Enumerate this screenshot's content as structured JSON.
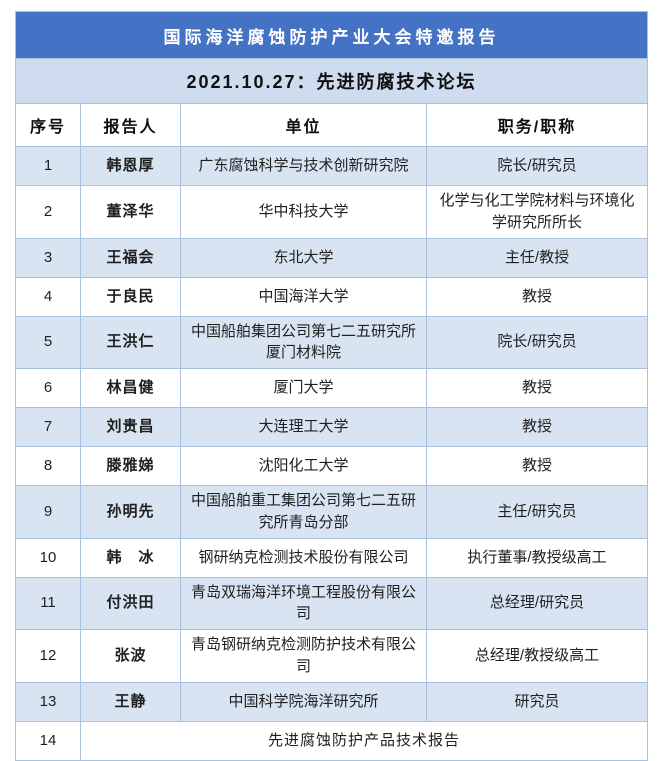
{
  "header": {
    "title": "国际海洋腐蚀防护产业大会特邀报告",
    "session": "2021.10.27：先进防腐技术论坛"
  },
  "table": {
    "columns": [
      {
        "label": "序号"
      },
      {
        "label": "报告人"
      },
      {
        "label": "单位"
      },
      {
        "label": "职务/职称"
      }
    ],
    "rows": [
      {
        "no": "1",
        "name": "韩恩厚",
        "org": "广东腐蚀科学与技术创新研究院",
        "position": "院长/研究员"
      },
      {
        "no": "2",
        "name": "董泽华",
        "org": "华中科技大学",
        "position": "化学与化工学院材料与环境化学研究所所长"
      },
      {
        "no": "3",
        "name": "王福会",
        "org": "东北大学",
        "position": "主任/教授"
      },
      {
        "no": "4",
        "name": "于良民",
        "org": "中国海洋大学",
        "position": "教授"
      },
      {
        "no": "5",
        "name": "王洪仁",
        "org": "中国船舶集团公司第七二五研究所厦门材料院",
        "position": "院长/研究员"
      },
      {
        "no": "6",
        "name": "林昌健",
        "org": "厦门大学",
        "position": "教授"
      },
      {
        "no": "7",
        "name": "刘贵昌",
        "org": "大连理工大学",
        "position": "教授"
      },
      {
        "no": "8",
        "name": "滕雅娣",
        "org": "沈阳化工大学",
        "position": "教授"
      },
      {
        "no": "9",
        "name": "孙明先",
        "org": "中国船舶重工集团公司第七二五研究所青岛分部",
        "position": "主任/研究员"
      },
      {
        "no": "10",
        "name": "韩　冰",
        "org": "钢研纳克检测技术股份有限公司",
        "position": "执行董事/教授级高工"
      },
      {
        "no": "11",
        "name": "付洪田",
        "org": "青岛双瑞海洋环境工程股份有限公司",
        "position": "总经理/研究员"
      },
      {
        "no": "12",
        "name": "张波",
        "org": "青岛钢研纳克检测防护技术有限公司",
        "position": "总经理/教授级高工"
      },
      {
        "no": "13",
        "name": "王静",
        "org": "中国科学院海洋研究所",
        "position": "研究员"
      },
      {
        "no": "14",
        "merged": true,
        "text": "先进腐蚀防护产品技术报告"
      }
    ]
  },
  "colors": {
    "accent_blue": "#4472C4",
    "session_bar_bg": "#CFDCEF",
    "banded_row_bg": "#D9E4F2",
    "grid_border": "#A7C1DE",
    "title_text": "#FFFFFF",
    "body_text": "#1F1F1F"
  }
}
